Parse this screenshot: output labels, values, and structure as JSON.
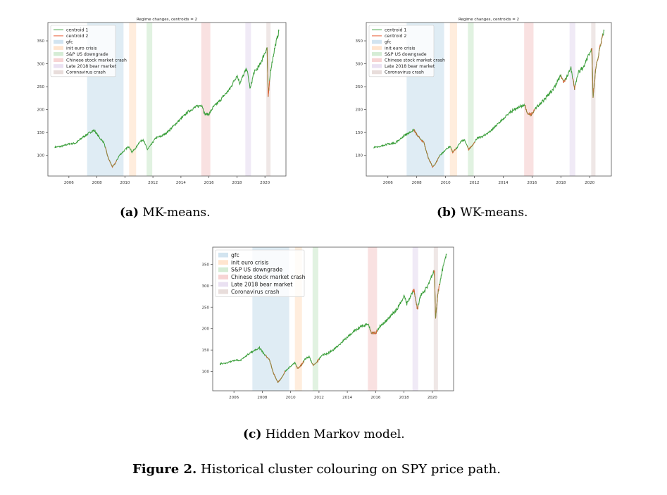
{
  "chart_data": [
    {
      "id": "a",
      "type": "line",
      "title": "Regime changes, centroids = 2",
      "xlim": [
        2004.5,
        2021.5
      ],
      "ylim": [
        55,
        390
      ],
      "xticks": [
        2006,
        2008,
        2010,
        2012,
        2014,
        2016,
        2018,
        2020
      ],
      "yticks": [
        100,
        150,
        200,
        250,
        300,
        350
      ],
      "series": [
        {
          "name": "centroid 1",
          "color": "#3a9e3a"
        },
        {
          "name": "centroid 2",
          "color": "#e8613a"
        }
      ],
      "regimes": [
        {
          "name": "gfc",
          "start": 2007.3,
          "end": 2009.9,
          "color": "#1f77b4"
        },
        {
          "name": "init euro crisis",
          "start": 2010.3,
          "end": 2010.8,
          "color": "#ff7f0e"
        },
        {
          "name": "S&P US downgrade",
          "start": 2011.55,
          "end": 2011.95,
          "color": "#2ca02c"
        },
        {
          "name": "Chinese stock market crash",
          "start": 2015.45,
          "end": 2016.1,
          "color": "#d62728"
        },
        {
          "name": "Late 2018 bear market",
          "start": 2018.6,
          "end": 2019.0,
          "color": "#9467bd"
        },
        {
          "name": "Coronavirus crash",
          "start": 2020.1,
          "end": 2020.4,
          "color": "#8c564b"
        }
      ],
      "price_path": [
        [
          2005.0,
          118
        ],
        [
          2005.5,
          120
        ],
        [
          2006.0,
          125
        ],
        [
          2006.5,
          127
        ],
        [
          2007.0,
          140
        ],
        [
          2007.5,
          150
        ],
        [
          2007.8,
          155
        ],
        [
          2008.2,
          138
        ],
        [
          2008.5,
          128
        ],
        [
          2008.8,
          95
        ],
        [
          2009.1,
          75
        ],
        [
          2009.3,
          82
        ],
        [
          2009.6,
          100
        ],
        [
          2010.0,
          112
        ],
        [
          2010.3,
          120
        ],
        [
          2010.5,
          107
        ],
        [
          2010.8,
          117
        ],
        [
          2011.0,
          128
        ],
        [
          2011.3,
          135
        ],
        [
          2011.6,
          113
        ],
        [
          2011.9,
          124
        ],
        [
          2012.2,
          138
        ],
        [
          2012.6,
          142
        ],
        [
          2013.0,
          150
        ],
        [
          2013.5,
          165
        ],
        [
          2014.0,
          180
        ],
        [
          2014.5,
          195
        ],
        [
          2015.0,
          205
        ],
        [
          2015.5,
          210
        ],
        [
          2015.7,
          190
        ],
        [
          2016.0,
          190
        ],
        [
          2016.3,
          205
        ],
        [
          2016.8,
          220
        ],
        [
          2017.0,
          228
        ],
        [
          2017.5,
          245
        ],
        [
          2018.0,
          275
        ],
        [
          2018.2,
          258
        ],
        [
          2018.7,
          290
        ],
        [
          2018.95,
          245
        ],
        [
          2019.2,
          280
        ],
        [
          2019.6,
          295
        ],
        [
          2020.0,
          325
        ],
        [
          2020.15,
          335
        ],
        [
          2020.23,
          225
        ],
        [
          2020.4,
          285
        ],
        [
          2020.7,
          335
        ],
        [
          2021.0,
          372
        ]
      ],
      "segments_series2": [
        [
          2008.6,
          2009.4
        ],
        [
          2020.15,
          2020.35
        ]
      ]
    },
    {
      "id": "b",
      "type": "line",
      "title": "Regime changes, centroids = 2",
      "xlim": [
        2004.5,
        2021.5
      ],
      "ylim": [
        55,
        390
      ],
      "xticks": [
        2006,
        2008,
        2010,
        2012,
        2014,
        2016,
        2018,
        2020
      ],
      "yticks": [
        100,
        150,
        200,
        250,
        300,
        350
      ],
      "series": [
        {
          "name": "centroid 1",
          "color": "#3a9e3a"
        },
        {
          "name": "centroid 2",
          "color": "#e8613a"
        }
      ],
      "regimes": [
        {
          "name": "gfc",
          "start": 2007.3,
          "end": 2009.9,
          "color": "#1f77b4"
        },
        {
          "name": "init euro crisis",
          "start": 2010.3,
          "end": 2010.8,
          "color": "#ff7f0e"
        },
        {
          "name": "S&P US downgrade",
          "start": 2011.55,
          "end": 2011.95,
          "color": "#2ca02c"
        },
        {
          "name": "Chinese stock market crash",
          "start": 2015.45,
          "end": 2016.1,
          "color": "#d62728"
        },
        {
          "name": "Late 2018 bear market",
          "start": 2018.6,
          "end": 2019.0,
          "color": "#9467bd"
        },
        {
          "name": "Coronavirus crash",
          "start": 2020.1,
          "end": 2020.4,
          "color": "#8c564b"
        }
      ],
      "price_path": [
        [
          2005.0,
          118
        ],
        [
          2005.5,
          120
        ],
        [
          2006.0,
          125
        ],
        [
          2006.5,
          127
        ],
        [
          2007.0,
          140
        ],
        [
          2007.5,
          150
        ],
        [
          2007.8,
          155
        ],
        [
          2008.2,
          138
        ],
        [
          2008.5,
          128
        ],
        [
          2008.8,
          95
        ],
        [
          2009.1,
          75
        ],
        [
          2009.3,
          82
        ],
        [
          2009.6,
          100
        ],
        [
          2010.0,
          112
        ],
        [
          2010.3,
          120
        ],
        [
          2010.5,
          107
        ],
        [
          2010.8,
          117
        ],
        [
          2011.0,
          128
        ],
        [
          2011.3,
          135
        ],
        [
          2011.6,
          113
        ],
        [
          2011.9,
          124
        ],
        [
          2012.2,
          138
        ],
        [
          2012.6,
          142
        ],
        [
          2013.0,
          150
        ],
        [
          2013.5,
          165
        ],
        [
          2014.0,
          180
        ],
        [
          2014.5,
          195
        ],
        [
          2015.0,
          205
        ],
        [
          2015.5,
          210
        ],
        [
          2015.7,
          190
        ],
        [
          2016.0,
          190
        ],
        [
          2016.3,
          205
        ],
        [
          2016.8,
          220
        ],
        [
          2017.0,
          228
        ],
        [
          2017.5,
          245
        ],
        [
          2018.0,
          275
        ],
        [
          2018.2,
          258
        ],
        [
          2018.7,
          290
        ],
        [
          2018.95,
          245
        ],
        [
          2019.2,
          280
        ],
        [
          2019.6,
          295
        ],
        [
          2020.0,
          325
        ],
        [
          2020.15,
          335
        ],
        [
          2020.23,
          225
        ],
        [
          2020.4,
          285
        ],
        [
          2020.7,
          335
        ],
        [
          2021.0,
          372
        ]
      ],
      "segments_series2": [
        [
          2007.8,
          2009.6
        ],
        [
          2010.4,
          2010.7
        ],
        [
          2011.5,
          2012.0
        ],
        [
          2015.5,
          2016.2
        ],
        [
          2018.0,
          2018.3
        ],
        [
          2018.8,
          2019.0
        ],
        [
          2020.1,
          2020.9
        ]
      ]
    },
    {
      "id": "c",
      "type": "line",
      "title": "",
      "xlim": [
        2004.5,
        2021.5
      ],
      "ylim": [
        55,
        390
      ],
      "xticks": [
        2006,
        2008,
        2010,
        2012,
        2014,
        2016,
        2018,
        2020
      ],
      "yticks": [
        100,
        150,
        200,
        250,
        300,
        350
      ],
      "series": [
        {
          "name": "",
          "color": "#3a9e3a"
        },
        {
          "name": "",
          "color": "#e8613a"
        }
      ],
      "regimes": [
        {
          "name": "gfc",
          "start": 2007.3,
          "end": 2009.9,
          "color": "#1f77b4"
        },
        {
          "name": "init euro crisis",
          "start": 2010.3,
          "end": 2010.8,
          "color": "#ff7f0e"
        },
        {
          "name": "S&P US downgrade",
          "start": 2011.55,
          "end": 2011.95,
          "color": "#2ca02c"
        },
        {
          "name": "Chinese stock market crash",
          "start": 2015.45,
          "end": 2016.1,
          "color": "#d62728"
        },
        {
          "name": "Late 2018 bear market",
          "start": 2018.6,
          "end": 2019.0,
          "color": "#9467bd"
        },
        {
          "name": "Coronavirus crash",
          "start": 2020.1,
          "end": 2020.4,
          "color": "#8c564b"
        }
      ],
      "price_path": [
        [
          2005.0,
          118
        ],
        [
          2005.5,
          120
        ],
        [
          2006.0,
          125
        ],
        [
          2006.5,
          127
        ],
        [
          2007.0,
          140
        ],
        [
          2007.5,
          150
        ],
        [
          2007.8,
          155
        ],
        [
          2008.2,
          138
        ],
        [
          2008.5,
          128
        ],
        [
          2008.8,
          95
        ],
        [
          2009.1,
          75
        ],
        [
          2009.3,
          82
        ],
        [
          2009.6,
          100
        ],
        [
          2010.0,
          112
        ],
        [
          2010.3,
          120
        ],
        [
          2010.5,
          107
        ],
        [
          2010.8,
          117
        ],
        [
          2011.0,
          128
        ],
        [
          2011.3,
          135
        ],
        [
          2011.6,
          113
        ],
        [
          2011.9,
          124
        ],
        [
          2012.2,
          138
        ],
        [
          2012.6,
          142
        ],
        [
          2013.0,
          150
        ],
        [
          2013.5,
          165
        ],
        [
          2014.0,
          180
        ],
        [
          2014.5,
          195
        ],
        [
          2015.0,
          205
        ],
        [
          2015.5,
          210
        ],
        [
          2015.7,
          190
        ],
        [
          2016.0,
          190
        ],
        [
          2016.3,
          205
        ],
        [
          2016.8,
          220
        ],
        [
          2017.0,
          228
        ],
        [
          2017.5,
          245
        ],
        [
          2018.0,
          275
        ],
        [
          2018.2,
          258
        ],
        [
          2018.7,
          290
        ],
        [
          2018.95,
          245
        ],
        [
          2019.2,
          280
        ],
        [
          2019.6,
          295
        ],
        [
          2020.0,
          325
        ],
        [
          2020.15,
          335
        ],
        [
          2020.23,
          225
        ],
        [
          2020.4,
          285
        ],
        [
          2020.7,
          335
        ],
        [
          2021.0,
          372
        ]
      ],
      "segments_series2": [
        [
          2008.2,
          2009.6
        ],
        [
          2010.4,
          2010.9
        ],
        [
          2011.5,
          2012.0
        ],
        [
          2015.6,
          2016.1
        ],
        [
          2018.6,
          2019.0
        ],
        [
          2020.1,
          2020.5
        ]
      ]
    }
  ],
  "captions": {
    "a": {
      "label": "(a)",
      "text": "MK-means."
    },
    "b": {
      "label": "(b)",
      "text": "WK-means."
    },
    "c": {
      "label": "(c)",
      "text": "Hidden Markov model."
    },
    "figure": {
      "label": "Figure 2.",
      "text": "Historical cluster colouring on SPY price path."
    }
  }
}
